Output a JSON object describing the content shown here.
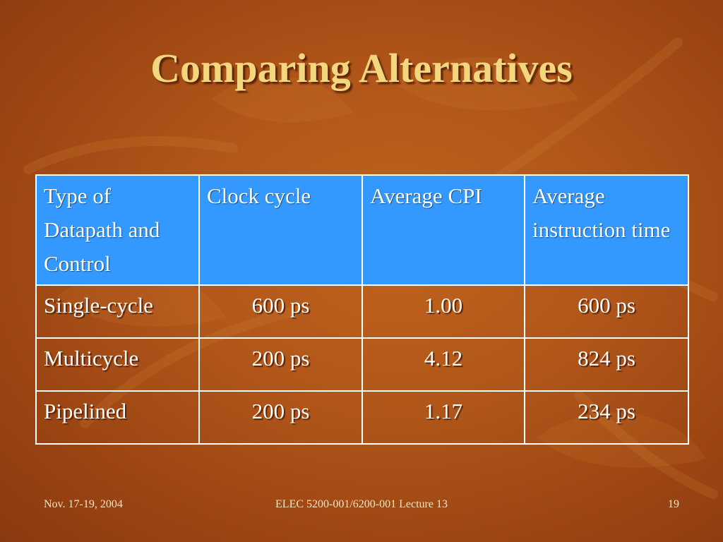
{
  "slide": {
    "title": "Comparing Alternatives"
  },
  "table": {
    "headers": [
      "Type of Datapath and Control",
      "Clock cycle",
      "Average CPI",
      "Average instruction time"
    ],
    "rows": [
      [
        "Single-cycle",
        "600 ps",
        "1.00",
        "600 ps"
      ],
      [
        "Multicycle",
        "200 ps",
        "4.12",
        "824 ps"
      ],
      [
        "Pipelined",
        "200 ps",
        "1.17",
        "234 ps"
      ]
    ]
  },
  "footer": {
    "date": "Nov. 17-19, 2004",
    "course": "ELEC 5200-001/6200-001 Lecture 13",
    "page_number": "19"
  },
  "colors": {
    "background": "#b0561a",
    "title": "#f2d77e",
    "header_fill": "#3399ff",
    "text": "#ffffff"
  }
}
